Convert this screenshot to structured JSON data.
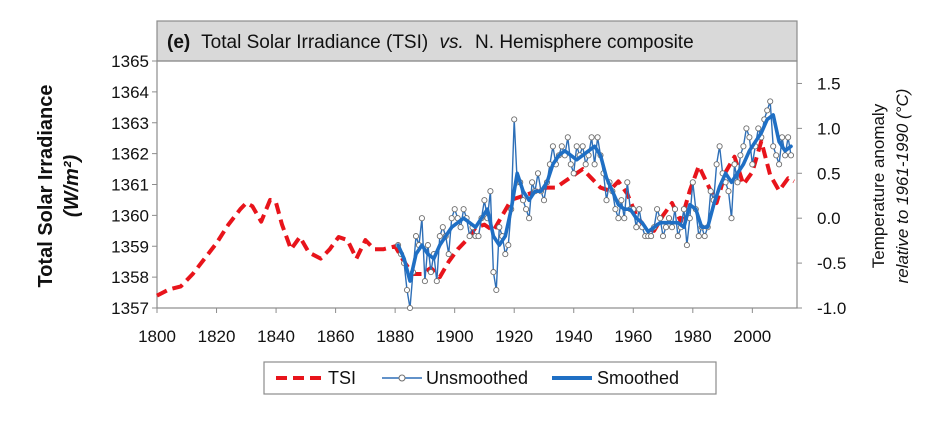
{
  "chart_data": {
    "type": "line",
    "title": {
      "panel": "(e)",
      "part1": "Total Solar Irradiance (TSI)",
      "italic": "vs.",
      "part2": "N. Hemisphere composite"
    },
    "ylabel_left": {
      "line1": "Total Solar Irradiance",
      "line2": "(W/m²)"
    },
    "ylabel_right": {
      "line1": "Temperature anomaly",
      "line2": "relative to 1961-1990 (°C)"
    },
    "xlim": [
      1800,
      2015
    ],
    "ylim_left": [
      1357,
      1365
    ],
    "ylim_right": [
      -1.0,
      1.75
    ],
    "x_ticks": [
      "1800",
      "1820",
      "1840",
      "1860",
      "1880",
      "1900",
      "1920",
      "1940",
      "1960",
      "1980",
      "2000"
    ],
    "y_left_ticks": [
      "1357",
      "1358",
      "1359",
      "1360",
      "1361",
      "1362",
      "1363",
      "1364",
      "1365"
    ],
    "y_right_ticks": [
      "-1.0",
      "-0.5",
      "0.0",
      "0.5",
      "1.0",
      "1.5"
    ],
    "grid": false,
    "legend_position": "bottom",
    "colors": {
      "tsi": "#e8141b",
      "unsmoothed": "#2e6fb7",
      "smoothed": "#1f6fc4",
      "title_box": "#d9d9d9"
    },
    "series": [
      {
        "name": "TSI",
        "axis": "left",
        "style": "dashed",
        "x": [
          1800,
          1804,
          1808,
          1812,
          1816,
          1820,
          1824,
          1828,
          1830,
          1832,
          1835,
          1838,
          1840,
          1842,
          1845,
          1848,
          1851,
          1855,
          1858,
          1861,
          1864,
          1867,
          1870,
          1873,
          1876,
          1880,
          1883,
          1886,
          1889,
          1892,
          1895,
          1898,
          1901,
          1904,
          1907,
          1910,
          1913,
          1916,
          1919,
          1922,
          1925,
          1928,
          1931,
          1934,
          1937,
          1940,
          1943,
          1946,
          1949,
          1952,
          1955,
          1958,
          1961,
          1964,
          1967,
          1970,
          1973,
          1976,
          1979,
          1982,
          1985,
          1988,
          1991,
          1994,
          1997,
          2000,
          2003,
          2006,
          2009,
          2012,
          2014
        ],
        "values": [
          1357.4,
          1357.6,
          1357.7,
          1358.1,
          1358.6,
          1359.1,
          1359.7,
          1360.2,
          1360.4,
          1360.3,
          1359.8,
          1360.5,
          1360.4,
          1359.7,
          1358.9,
          1359.3,
          1358.8,
          1358.6,
          1358.9,
          1359.3,
          1359.2,
          1358.6,
          1359.2,
          1358.9,
          1358.9,
          1359.0,
          1358.5,
          1358.1,
          1358.1,
          1358.3,
          1358.0,
          1358.5,
          1358.9,
          1359.2,
          1359.6,
          1359.7,
          1359.5,
          1360.0,
          1360.5,
          1360.6,
          1360.7,
          1360.8,
          1360.9,
          1360.9,
          1361.1,
          1361.3,
          1361.5,
          1361.2,
          1360.9,
          1360.8,
          1361.1,
          1360.7,
          1360.0,
          1359.6,
          1359.5,
          1360.0,
          1360.4,
          1359.8,
          1360.8,
          1361.6,
          1361.0,
          1360.4,
          1361.4,
          1361.9,
          1361.0,
          1361.4,
          1362.4,
          1361.3,
          1360.8,
          1361.2,
          1361.1
        ]
      },
      {
        "name": "Unsmoothed",
        "axis": "right",
        "style": "line-markers",
        "x": [
          1881,
          1882,
          1883,
          1884,
          1885,
          1886,
          1887,
          1888,
          1889,
          1890,
          1891,
          1892,
          1893,
          1894,
          1895,
          1896,
          1897,
          1898,
          1899,
          1900,
          1901,
          1902,
          1903,
          1904,
          1905,
          1906,
          1907,
          1908,
          1909,
          1910,
          1911,
          1912,
          1913,
          1914,
          1915,
          1916,
          1917,
          1918,
          1919,
          1920,
          1921,
          1922,
          1923,
          1924,
          1925,
          1926,
          1927,
          1928,
          1929,
          1930,
          1931,
          1932,
          1933,
          1934,
          1935,
          1936,
          1937,
          1938,
          1939,
          1940,
          1941,
          1942,
          1943,
          1944,
          1945,
          1946,
          1947,
          1948,
          1949,
          1950,
          1951,
          1952,
          1953,
          1954,
          1955,
          1956,
          1957,
          1958,
          1959,
          1960,
          1961,
          1962,
          1963,
          1964,
          1965,
          1966,
          1967,
          1968,
          1969,
          1970,
          1971,
          1972,
          1973,
          1974,
          1975,
          1976,
          1977,
          1978,
          1979,
          1980,
          1981,
          1982,
          1983,
          1984,
          1985,
          1986,
          1987,
          1988,
          1989,
          1990,
          1991,
          1992,
          1993,
          1994,
          1995,
          1996,
          1997,
          1998,
          1999,
          2000,
          2001,
          2002,
          2003,
          2004,
          2005,
          2006,
          2007,
          2008,
          2009,
          2010,
          2011,
          2012,
          2013
        ],
        "values": [
          -0.3,
          -0.4,
          -0.5,
          -0.8,
          -1.0,
          -0.6,
          -0.2,
          -0.3,
          0.0,
          -0.7,
          -0.3,
          -0.6,
          -0.4,
          -0.7,
          -0.2,
          -0.1,
          -0.2,
          -0.4,
          0.0,
          0.1,
          0.0,
          -0.1,
          0.1,
          0.0,
          -0.2,
          -0.1,
          -0.2,
          -0.2,
          0.0,
          0.2,
          0.0,
          0.3,
          -0.6,
          -0.8,
          -0.1,
          -0.2,
          -0.4,
          -0.3,
          0.1,
          1.1,
          0.4,
          0.4,
          0.2,
          0.1,
          0.0,
          0.4,
          0.3,
          0.5,
          0.3,
          0.2,
          0.4,
          0.6,
          0.8,
          0.6,
          0.7,
          0.8,
          0.7,
          0.9,
          0.6,
          0.5,
          0.8,
          0.7,
          0.8,
          0.6,
          0.7,
          0.9,
          0.6,
          0.9,
          0.7,
          0.5,
          0.2,
          0.4,
          0.3,
          0.1,
          0.0,
          0.2,
          0.0,
          0.4,
          0.1,
          0.1,
          -0.1,
          0.1,
          -0.1,
          -0.2,
          -0.2,
          -0.2,
          -0.1,
          0.1,
          0.0,
          -0.2,
          -0.1,
          0.0,
          -0.1,
          0.1,
          -0.2,
          -0.1,
          0.1,
          -0.3,
          0.0,
          0.4,
          0.1,
          -0.2,
          -0.1,
          -0.2,
          -0.1,
          0.3,
          0.2,
          0.6,
          0.8,
          0.5,
          0.4,
          0.3,
          0.0,
          0.6,
          0.4,
          0.7,
          0.8,
          1.0,
          0.9,
          0.6,
          0.8,
          1.0,
          0.9,
          1.1,
          1.2,
          1.3,
          0.8,
          0.7,
          0.6,
          0.9,
          0.7,
          0.9,
          0.7
        ]
      },
      {
        "name": "Smoothed",
        "axis": "right",
        "style": "thick-line",
        "x": [
          1881,
          1883,
          1885,
          1887,
          1889,
          1891,
          1893,
          1895,
          1897,
          1899,
          1901,
          1903,
          1905,
          1907,
          1909,
          1911,
          1913,
          1915,
          1917,
          1919,
          1921,
          1923,
          1925,
          1927,
          1929,
          1931,
          1933,
          1935,
          1937,
          1939,
          1941,
          1943,
          1945,
          1947,
          1949,
          1951,
          1953,
          1955,
          1957,
          1959,
          1961,
          1963,
          1965,
          1967,
          1969,
          1971,
          1973,
          1975,
          1977,
          1979,
          1981,
          1983,
          1985,
          1987,
          1989,
          1991,
          1993,
          1995,
          1997,
          1999,
          2001,
          2003,
          2005,
          2007,
          2009,
          2011,
          2013
        ],
        "values": [
          -0.3,
          -0.45,
          -0.7,
          -0.4,
          -0.3,
          -0.4,
          -0.45,
          -0.3,
          -0.2,
          -0.1,
          -0.05,
          0.0,
          -0.05,
          -0.1,
          0.0,
          0.1,
          -0.2,
          -0.3,
          -0.2,
          0.1,
          0.5,
          0.3,
          0.2,
          0.3,
          0.3,
          0.4,
          0.6,
          0.7,
          0.75,
          0.7,
          0.65,
          0.7,
          0.75,
          0.8,
          0.7,
          0.45,
          0.3,
          0.15,
          0.1,
          0.1,
          0.0,
          -0.05,
          -0.15,
          -0.1,
          -0.05,
          -0.05,
          -0.05,
          -0.05,
          -0.1,
          0.15,
          0.1,
          -0.1,
          -0.1,
          0.15,
          0.35,
          0.5,
          0.4,
          0.5,
          0.6,
          0.75,
          0.85,
          0.95,
          1.1,
          1.15,
          0.85,
          0.75,
          0.8
        ]
      }
    ]
  }
}
